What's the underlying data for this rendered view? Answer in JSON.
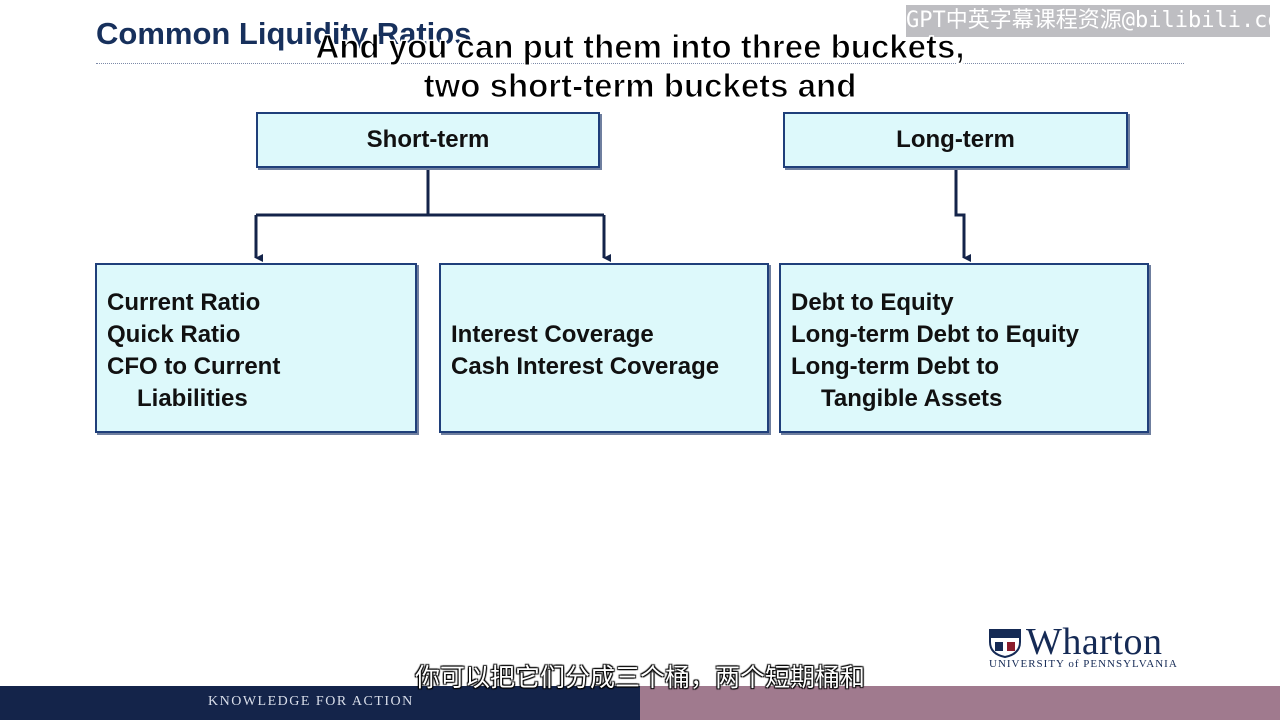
{
  "slide": {
    "title": "Common Liquidity Ratios"
  },
  "watermark": "GPT中英字幕课程资源@bilibili.com",
  "subtitles": {
    "english_line1": "And you can put them into three buckets,",
    "english_line2": "two short-term buckets and",
    "chinese": "你可以把它们分成三个桶，两个短期桶和"
  },
  "diagram": {
    "headers": [
      {
        "label": "Short-term"
      },
      {
        "label": "Long-term"
      }
    ],
    "buckets": [
      {
        "lines": [
          "Current Ratio",
          "Quick Ratio",
          "CFO to Current",
          "Liabilities"
        ]
      },
      {
        "lines": [
          "Interest Coverage",
          "Cash Interest Coverage"
        ]
      },
      {
        "lines": [
          "Debt to Equity",
          "Long-term Debt to Equity",
          "Long-term Debt to",
          "Tangible Assets"
        ]
      }
    ]
  },
  "footer": {
    "tagline": "KNOWLEDGE FOR ACTION"
  },
  "logo": {
    "name": "Wharton",
    "subtitle": "UNIVERSITY of PENNSYLVANIA"
  }
}
